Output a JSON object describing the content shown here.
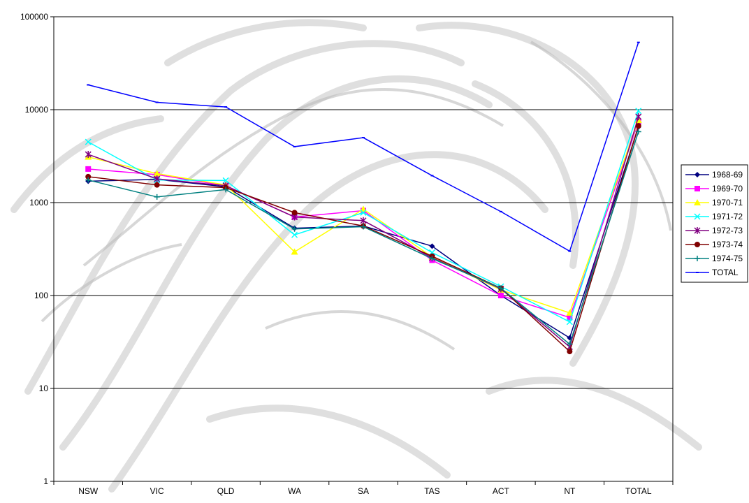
{
  "chart_data": {
    "type": "line",
    "y_scale": "log",
    "ylim": [
      1,
      100000
    ],
    "y_ticks": [
      "1",
      "10",
      "100",
      "1000",
      "10000",
      "100000"
    ],
    "categories": [
      "NSW",
      "VIC",
      "QLD",
      "WA",
      "SA",
      "TAS",
      "ACT",
      "NT",
      "TOTAL"
    ],
    "grid": true,
    "legend_position": "right",
    "series": [
      {
        "name": "1968-69",
        "color": "#000080",
        "marker": "diamond",
        "values": [
          1700,
          1780,
          1480,
          530,
          560,
          340,
          100,
          35,
          6500
        ]
      },
      {
        "name": "1969-70",
        "color": "#ff00ff",
        "marker": "square",
        "values": [
          2300,
          2000,
          1520,
          700,
          820,
          240,
          100,
          58,
          7400
        ]
      },
      {
        "name": "1970-71",
        "color": "#ffff00",
        "marker": "triangle",
        "values": [
          3100,
          2050,
          1550,
          295,
          850,
          260,
          115,
          65,
          7700
        ]
      },
      {
        "name": "1971-72",
        "color": "#00ffff",
        "marker": "x",
        "values": [
          4500,
          1750,
          1730,
          450,
          780,
          290,
          125,
          52,
          9700
        ]
      },
      {
        "name": "1972-73",
        "color": "#800080",
        "marker": "star",
        "values": [
          3300,
          1800,
          1520,
          700,
          640,
          255,
          118,
          28,
          8400
        ]
      },
      {
        "name": "1973-74",
        "color": "#800000",
        "marker": "circle",
        "values": [
          1900,
          1550,
          1450,
          780,
          560,
          265,
          120,
          25,
          6700
        ]
      },
      {
        "name": "1974-75",
        "color": "#008080",
        "marker": "plus",
        "values": [
          1750,
          1150,
          1380,
          520,
          550,
          250,
          120,
          30,
          5800
        ]
      },
      {
        "name": "TOTAL",
        "color": "#0000ff",
        "marker": "dash",
        "values": [
          18500,
          12000,
          10700,
          4000,
          5000,
          1950,
          800,
          300,
          53000
        ]
      }
    ]
  }
}
